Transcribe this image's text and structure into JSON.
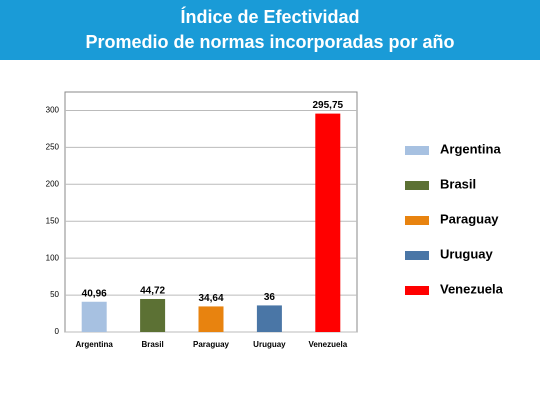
{
  "chart_data": {
    "type": "bar",
    "title": "Índice de Efectividad",
    "subtitle": "Promedio de normas incorporadas por año",
    "categories": [
      "Argentina",
      "Brasil",
      "Paraguay",
      "Uruguay",
      "Venezuela"
    ],
    "values": [
      40.96,
      44.72,
      34.64,
      36,
      295.75
    ],
    "value_labels": [
      "40,96",
      "44,72",
      "34,64",
      "36",
      "295,75"
    ],
    "colors": [
      "#a7c1e1",
      "#5c7134",
      "#e8830f",
      "#4a76a6",
      "#ff0000"
    ],
    "ylim": [
      0,
      325
    ],
    "yticks": [
      0,
      50,
      100,
      150,
      200,
      250,
      300
    ],
    "grid": true,
    "legend": "right"
  }
}
